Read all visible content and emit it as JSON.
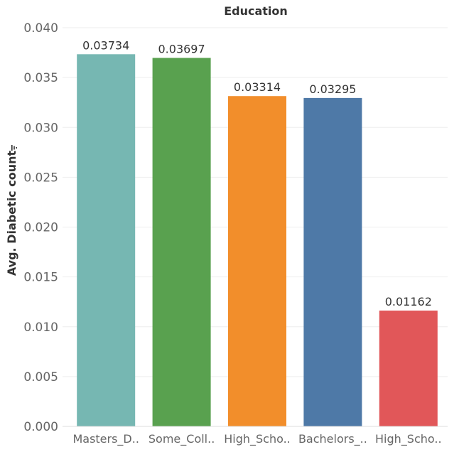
{
  "chart_data": {
    "type": "bar",
    "title": "Education",
    "ylabel": "Avg. Diabetic count",
    "xlabel": "",
    "ylim": [
      0,
      0.04
    ],
    "yticks": [
      "0.000",
      "0.005",
      "0.010",
      "0.015",
      "0.020",
      "0.025",
      "0.030",
      "0.035",
      "0.040"
    ],
    "categories": [
      "Masters_D..",
      "Some_Coll..",
      "High_Scho..",
      "Bachelors_..",
      "High_Scho.."
    ],
    "values": [
      0.03734,
      0.03697,
      0.03314,
      0.03295,
      0.01162
    ],
    "data_labels": [
      "0.03734",
      "0.03697",
      "0.03314",
      "0.03295",
      "0.01162"
    ],
    "colors": [
      "#76b7b2",
      "#59a14f",
      "#f28e2b",
      "#4e79a7",
      "#e15759"
    ],
    "grid": true,
    "legend": "none",
    "filter_icon": "filter-icon"
  }
}
